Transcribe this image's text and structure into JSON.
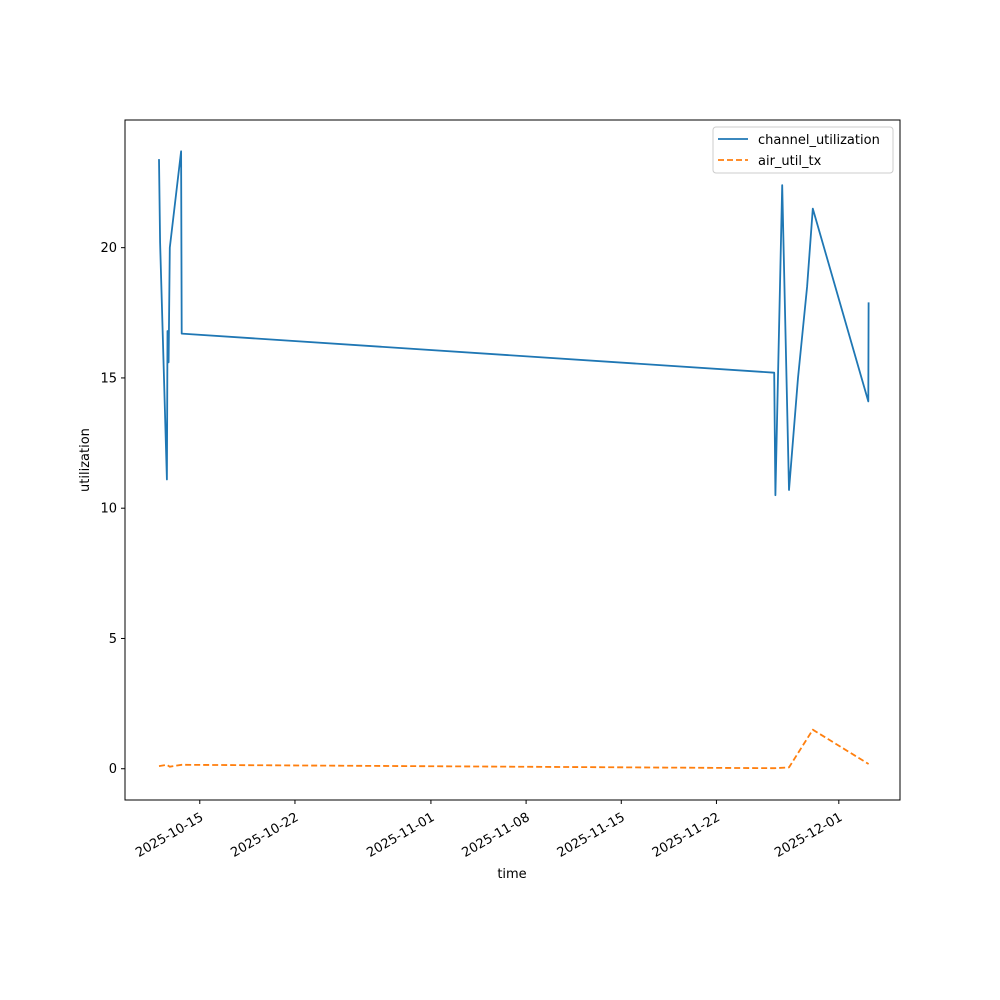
{
  "chart_data": {
    "type": "line",
    "title": "",
    "xlabel": "time",
    "ylabel": "utilization",
    "xlim": [
      "2025-10-09T12:00",
      "2025-12-05T12:00"
    ],
    "ylim": [
      -1.2,
      24.9
    ],
    "x_ticks": [
      {
        "value": "2025-10-15",
        "label": "2025-10-15"
      },
      {
        "value": "2025-10-22",
        "label": "2025-10-22"
      },
      {
        "value": "2025-11-01",
        "label": "2025-11-01"
      },
      {
        "value": "2025-11-08",
        "label": "2025-11-08"
      },
      {
        "value": "2025-11-15",
        "label": "2025-11-15"
      },
      {
        "value": "2025-11-22",
        "label": "2025-11-22"
      },
      {
        "value": "2025-12-01",
        "label": "2025-12-01"
      }
    ],
    "y_ticks": [
      {
        "value": 0,
        "label": "0"
      },
      {
        "value": 5,
        "label": "5"
      },
      {
        "value": 10,
        "label": "10"
      },
      {
        "value": 15,
        "label": "15"
      },
      {
        "value": 20,
        "label": "20"
      }
    ],
    "grid": false,
    "legend_position": "upper right",
    "series": [
      {
        "name": "channel_utilization",
        "color": "#1f77b4",
        "style": "solid",
        "points": [
          {
            "x": "2025-10-12T00:00",
            "y": 23.4
          },
          {
            "x": "2025-10-12T02:00",
            "y": 20.2
          },
          {
            "x": "2025-10-12T14:00",
            "y": 11.1
          },
          {
            "x": "2025-10-12T15:00",
            "y": 16.8
          },
          {
            "x": "2025-10-12T17:00",
            "y": 15.6
          },
          {
            "x": "2025-10-12T19:00",
            "y": 20.0
          },
          {
            "x": "2025-10-13T15:00",
            "y": 23.7
          },
          {
            "x": "2025-10-13T16:00",
            "y": 16.7
          },
          {
            "x": "2025-11-26T06:00",
            "y": 15.2
          },
          {
            "x": "2025-11-26T08:00",
            "y": 10.5
          },
          {
            "x": "2025-11-26T20:00",
            "y": 22.4
          },
          {
            "x": "2025-11-27T08:00",
            "y": 10.7
          },
          {
            "x": "2025-11-28T00:00",
            "y": 15.0
          },
          {
            "x": "2025-11-28T16:00",
            "y": 18.5
          },
          {
            "x": "2025-11-29T02:00",
            "y": 21.5
          },
          {
            "x": "2025-12-03T04:00",
            "y": 14.1
          },
          {
            "x": "2025-12-03T04:30",
            "y": 17.9
          }
        ]
      },
      {
        "name": "air_util_tx",
        "color": "#ff7f0e",
        "style": "dashed",
        "points": [
          {
            "x": "2025-10-12T00:00",
            "y": 0.1
          },
          {
            "x": "2025-10-12T14:00",
            "y": 0.15
          },
          {
            "x": "2025-10-12T19:00",
            "y": 0.08
          },
          {
            "x": "2025-10-13T16:00",
            "y": 0.15
          },
          {
            "x": "2025-11-26T06:00",
            "y": 0.02
          },
          {
            "x": "2025-11-27T08:00",
            "y": 0.05
          },
          {
            "x": "2025-11-29T02:00",
            "y": 1.5
          },
          {
            "x": "2025-12-03T04:30",
            "y": 0.18
          }
        ]
      }
    ]
  }
}
